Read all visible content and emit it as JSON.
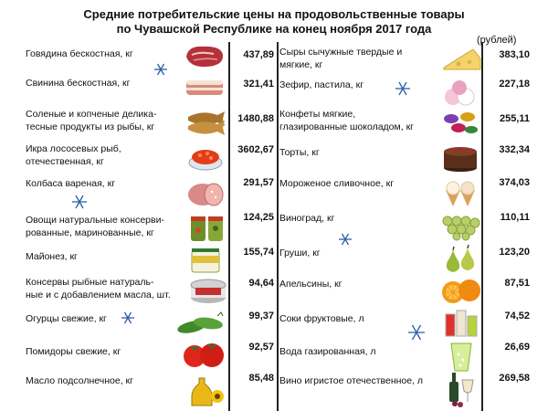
{
  "title_line1": "Средние потребительские цены на продовольственные товары",
  "title_line2": "по Чувашской Республике на конец ноября 2017 года",
  "unit": "(рублей)",
  "left_items": [
    {
      "name": [
        "Говядина бескостная, кг"
      ],
      "price": "437,89",
      "icon": "beef-icon"
    },
    {
      "name": [
        "Свинина бескостная, кг"
      ],
      "price": "321,41",
      "icon": "pork-icon"
    },
    {
      "name": [
        "Соленые и копченые делика-",
        "тесные продукты из рыбы, кг"
      ],
      "price": "1480,88",
      "icon": "smoked-fish-icon"
    },
    {
      "name": [
        "Икра лососевых рыб,",
        "отечественная, кг"
      ],
      "price": "3602,67",
      "icon": "caviar-icon"
    },
    {
      "name": [
        "Колбаса вареная, кг"
      ],
      "price": "291,57",
      "icon": "sausage-icon"
    },
    {
      "name": [
        "Овощи натуральные консерви-",
        "рованные, маринованные, кг"
      ],
      "price": "124,25",
      "icon": "pickles-jar-icon"
    },
    {
      "name": [
        "Майонез, кг"
      ],
      "price": "155,74",
      "icon": "mayonnaise-icon"
    },
    {
      "name": [
        "Консервы рыбные  натураль-",
        "ные и с добавлением масла, шт."
      ],
      "price": "94,64",
      "icon": "canned-fish-icon"
    },
    {
      "name": [
        "Огурцы свежие, кг"
      ],
      "price": "99,37",
      "icon": "cucumber-icon"
    },
    {
      "name": [
        "Помидоры свежие, кг"
      ],
      "price": "92,57",
      "icon": "tomato-icon"
    },
    {
      "name": [
        "Масло подсолнечное, кг"
      ],
      "price": "85,48",
      "icon": "sunflower-oil-icon"
    }
  ],
  "right_items": [
    {
      "name": [
        "Сыры сычужные твердые и",
        "мягкие, кг"
      ],
      "price": "383,10",
      "icon": "cheese-icon"
    },
    {
      "name": [
        "Зефир, пастила, кг"
      ],
      "price": "227,18",
      "icon": "marshmallow-icon"
    },
    {
      "name": [
        "Конфеты мягкие,",
        "глазированные шоколадом, кг"
      ],
      "price": "255,11",
      "icon": "candy-icon"
    },
    {
      "name": [
        "Торты, кг"
      ],
      "price": "332,34",
      "icon": "cake-icon"
    },
    {
      "name": [
        "Мороженое сливочное, кг"
      ],
      "price": "374,03",
      "icon": "ice-cream-icon"
    },
    {
      "name": [
        "Виноград, кг"
      ],
      "price": "110,11",
      "icon": "grapes-icon"
    },
    {
      "name": [
        "Груши, кг"
      ],
      "price": "123,20",
      "icon": "pears-icon"
    },
    {
      "name": [
        "Апельсины, кг"
      ],
      "price": "87,51",
      "icon": "oranges-icon"
    },
    {
      "name": [
        "Соки фруктовые, л"
      ],
      "price": "74,52",
      "icon": "juice-icon"
    },
    {
      "name": [
        "Вода газированная, л"
      ],
      "price": "26,69",
      "icon": "soda-water-icon"
    },
    {
      "name": [
        "Вино игристое отечественное, л"
      ],
      "price": "269,58",
      "icon": "sparkling-wine-icon"
    }
  ],
  "colors": {
    "snowflake": "#2b5fa6",
    "rule": "#222222"
  }
}
